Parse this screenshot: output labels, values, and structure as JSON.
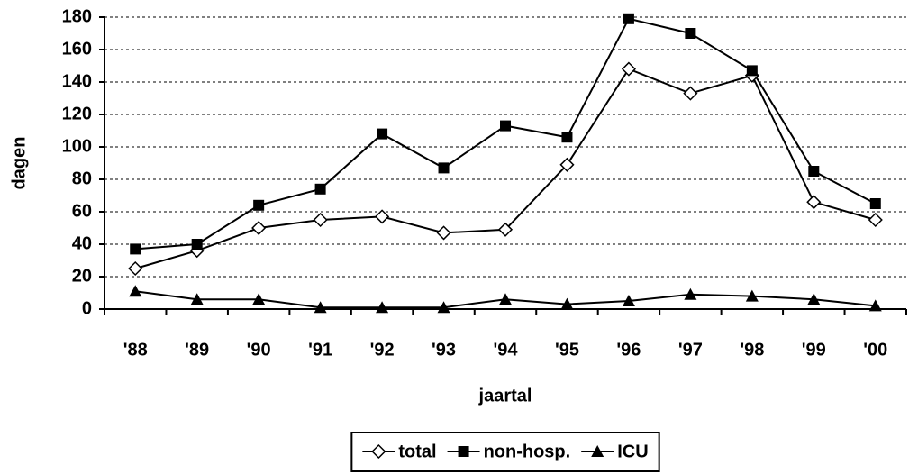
{
  "chart_data": {
    "type": "line",
    "x_label": "jaartal",
    "y_label": "dagen",
    "categories": [
      "'88",
      "'89",
      "'90",
      "'91",
      "'92",
      "'93",
      "'94",
      "'95",
      "'96",
      "'97",
      "'98",
      "'99",
      "'00"
    ],
    "series": [
      {
        "name": "total",
        "color": "#000000",
        "marker": "diamond",
        "values": [
          25,
          36,
          50,
          55,
          57,
          47,
          49,
          89,
          148,
          133,
          144,
          66,
          55
        ]
      },
      {
        "name": "non-hosp.",
        "color": "#000000",
        "marker": "square",
        "values": [
          37,
          40,
          64,
          74,
          108,
          87,
          113,
          106,
          179,
          170,
          147,
          85,
          65
        ]
      },
      {
        "name": "ICU",
        "color": "#000000",
        "marker": "triangle",
        "values": [
          11,
          6,
          6,
          1,
          1,
          1,
          6,
          3,
          5,
          9,
          8,
          6,
          2
        ]
      }
    ],
    "ylim": [
      0,
      180
    ],
    "yticks": [
      0,
      20,
      40,
      60,
      80,
      100,
      120,
      140,
      160,
      180
    ],
    "grid": true,
    "legend": "bottom"
  }
}
